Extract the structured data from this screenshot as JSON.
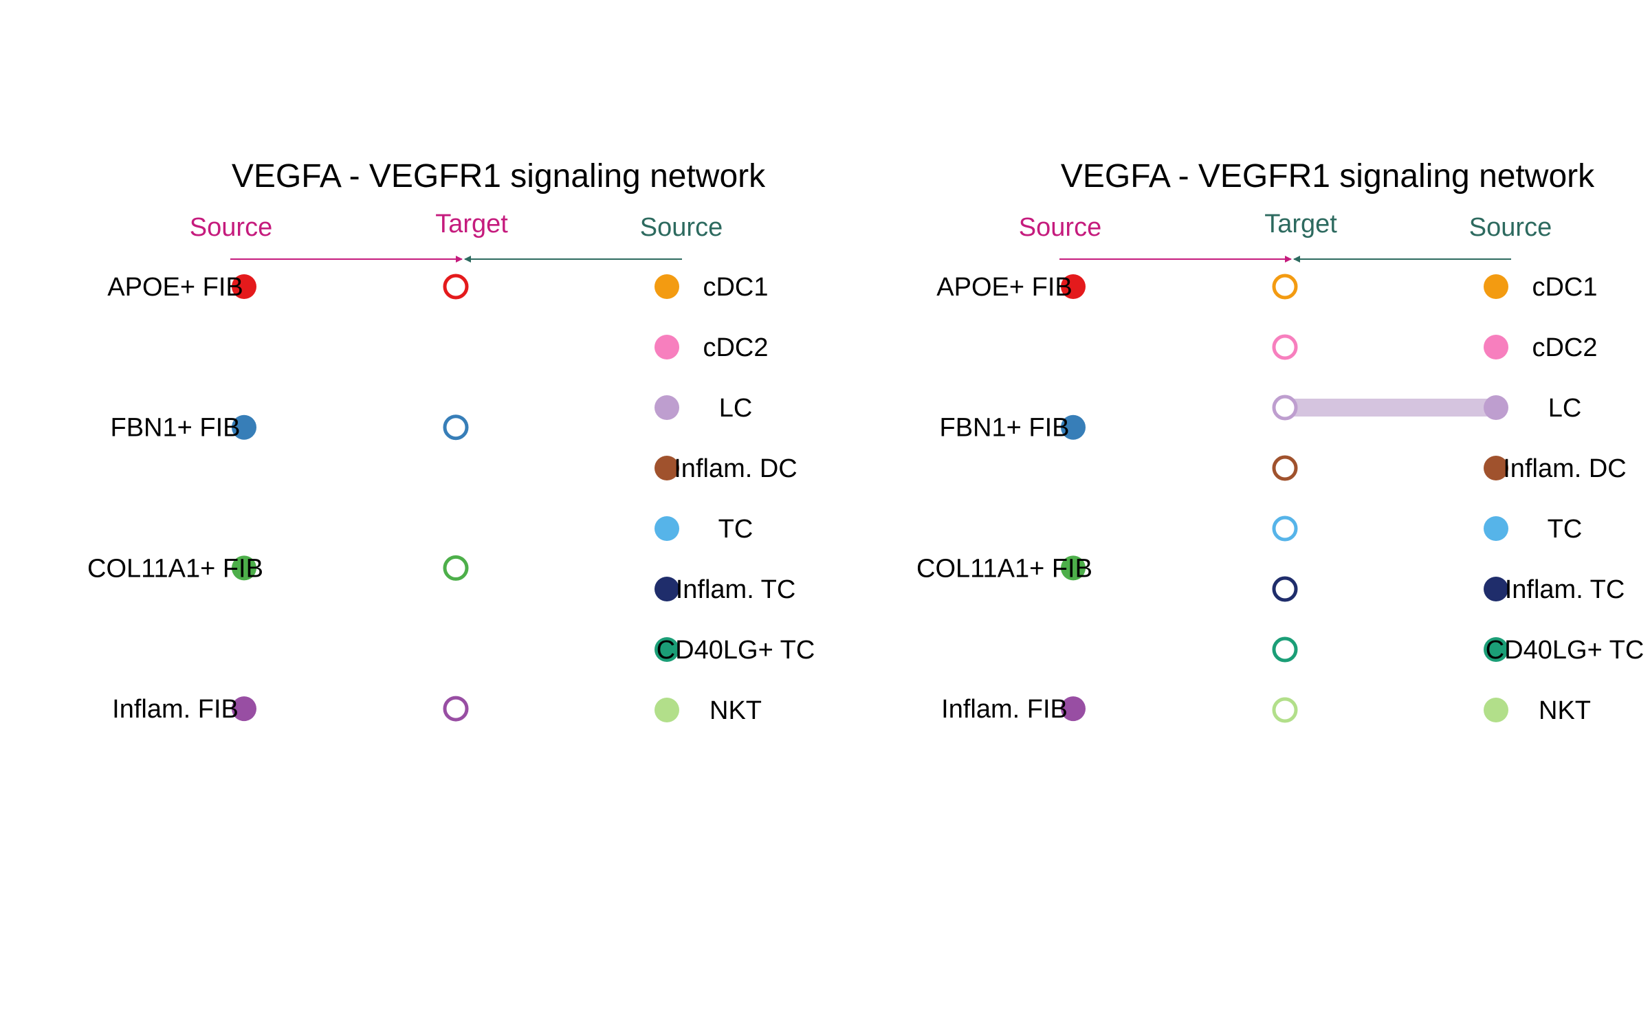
{
  "colors": {
    "source_left": "#C51B7D",
    "source_right": "#2D6A5F",
    "link": "#D5C4DF"
  },
  "panels": [
    {
      "title": "VEGFA - VEGFR1 signaling network",
      "header": {
        "source_left": "Source",
        "target": "Target",
        "source_right": "Source",
        "target_color_key": "source_left"
      },
      "left_nodes": [
        {
          "label": "APOE+ FIB",
          "color": "#E41A1C"
        },
        {
          "label": "FBN1+ FIB",
          "color": "#377EB8"
        },
        {
          "label": "COL11A1+ FIB",
          "color": "#4DAF4A"
        },
        {
          "label": "Inflam. FIB",
          "color": "#984EA3"
        }
      ],
      "target_nodes": [
        {
          "color": "#E41A1C",
          "row": "left",
          "index": 0
        },
        {
          "color": "#377EB8",
          "row": "left",
          "index": 1
        },
        {
          "color": "#4DAF4A",
          "row": "left",
          "index": 2
        },
        {
          "color": "#984EA3",
          "row": "left",
          "index": 3
        }
      ],
      "right_nodes": [
        {
          "label": "cDC1",
          "color": "#F39B11"
        },
        {
          "label": "cDC2",
          "color": "#F77FBE"
        },
        {
          "label": "LC",
          "color": "#BE9ECF"
        },
        {
          "label": "Inflam. DC",
          "color": "#A0522D"
        },
        {
          "label": "TC",
          "color": "#56B4E9"
        },
        {
          "label": "Inflam. TC",
          "color": "#1F2D6B"
        },
        {
          "label": "CD40LG+ TC",
          "color": "#1B9E77"
        },
        {
          "label": "NKT",
          "color": "#B2DF8A"
        }
      ],
      "links": []
    },
    {
      "title": "VEGFA - VEGFR1 signaling network",
      "header": {
        "source_left": "Source",
        "target": "Target",
        "source_right": "Source",
        "target_color_key": "source_right"
      },
      "left_nodes": [
        {
          "label": "APOE+ FIB",
          "color": "#E41A1C"
        },
        {
          "label": "FBN1+ FIB",
          "color": "#377EB8"
        },
        {
          "label": "COL11A1+ FIB",
          "color": "#4DAF4A"
        },
        {
          "label": "Inflam. FIB",
          "color": "#984EA3"
        }
      ],
      "target_nodes": [
        {
          "color": "#F39B11",
          "row": "right",
          "index": 0
        },
        {
          "color": "#F77FBE",
          "row": "right",
          "index": 1
        },
        {
          "color": "#BE9ECF",
          "row": "right",
          "index": 2
        },
        {
          "color": "#A0522D",
          "row": "right",
          "index": 3
        },
        {
          "color": "#56B4E9",
          "row": "right",
          "index": 4
        },
        {
          "color": "#1F2D6B",
          "row": "right",
          "index": 5
        },
        {
          "color": "#1B9E77",
          "row": "right",
          "index": 6
        },
        {
          "color": "#B2DF8A",
          "row": "right",
          "index": 7
        }
      ],
      "right_nodes": [
        {
          "label": "cDC1",
          "color": "#F39B11"
        },
        {
          "label": "cDC2",
          "color": "#F77FBE"
        },
        {
          "label": "LC",
          "color": "#BE9ECF"
        },
        {
          "label": "Inflam. DC",
          "color": "#A0522D"
        },
        {
          "label": "TC",
          "color": "#56B4E9"
        },
        {
          "label": "Inflam. TC",
          "color": "#1F2D6B"
        },
        {
          "label": "CD40LG+ TC",
          "color": "#1B9E77"
        },
        {
          "label": "NKT",
          "color": "#B2DF8A"
        }
      ],
      "links": [
        {
          "from": "LC",
          "to_target_index": 2
        }
      ]
    }
  ]
}
